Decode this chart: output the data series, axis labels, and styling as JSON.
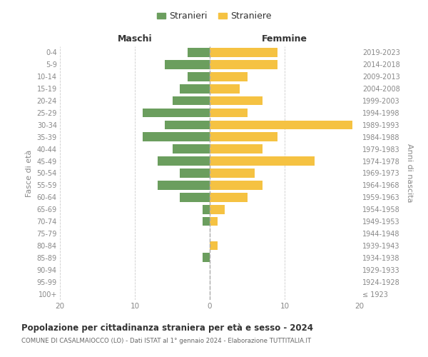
{
  "age_groups": [
    "100+",
    "95-99",
    "90-94",
    "85-89",
    "80-84",
    "75-79",
    "70-74",
    "65-69",
    "60-64",
    "55-59",
    "50-54",
    "45-49",
    "40-44",
    "35-39",
    "30-34",
    "25-29",
    "20-24",
    "15-19",
    "10-14",
    "5-9",
    "0-4"
  ],
  "birth_years": [
    "≤ 1923",
    "1924-1928",
    "1929-1933",
    "1934-1938",
    "1939-1943",
    "1944-1948",
    "1949-1953",
    "1954-1958",
    "1959-1963",
    "1964-1968",
    "1969-1973",
    "1974-1978",
    "1979-1983",
    "1984-1988",
    "1989-1993",
    "1994-1998",
    "1999-2003",
    "2004-2008",
    "2009-2013",
    "2014-2018",
    "2019-2023"
  ],
  "males": [
    0,
    0,
    0,
    1,
    0,
    0,
    1,
    1,
    4,
    7,
    4,
    7,
    5,
    9,
    6,
    9,
    5,
    4,
    3,
    6,
    3
  ],
  "females": [
    0,
    0,
    0,
    0,
    1,
    0,
    1,
    2,
    5,
    7,
    6,
    14,
    7,
    9,
    19,
    5,
    7,
    4,
    5,
    9,
    9
  ],
  "male_color": "#6b9e5e",
  "female_color": "#f5c242",
  "xlim": 20,
  "title": "Popolazione per cittadinanza straniera per età e sesso - 2024",
  "subtitle": "COMUNE DI CASALMAIOCCO (LO) - Dati ISTAT al 1° gennaio 2024 - Elaborazione TUTTITALIA.IT",
  "legend_male": "Stranieri",
  "legend_female": "Straniere",
  "xlabel_left": "Maschi",
  "xlabel_right": "Femmine",
  "ylabel_left": "Fasce di età",
  "ylabel_right": "Anni di nascita",
  "bg_color": "#ffffff",
  "grid_color": "#cccccc",
  "title_color": "#333333",
  "subtitle_color": "#666666",
  "label_color": "#888888"
}
